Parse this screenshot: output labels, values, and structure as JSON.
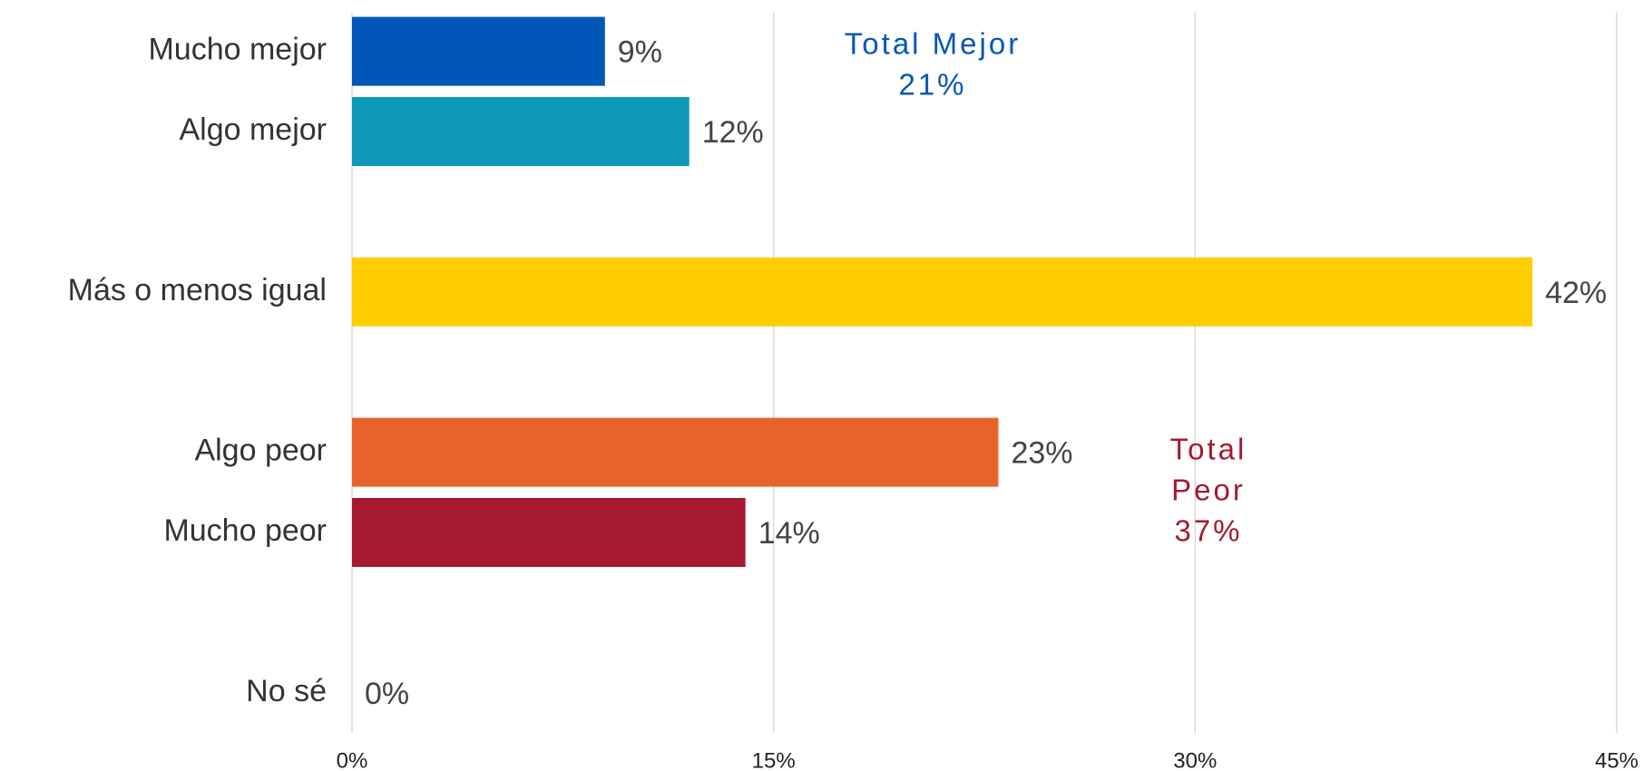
{
  "chart_data": {
    "type": "barh",
    "categories": [
      "Mucho mejor",
      "Algo mejor",
      null,
      "Más o menos igual",
      null,
      "Algo peor",
      "Mucho peor",
      null,
      "No sé"
    ],
    "values": [
      9,
      12,
      null,
      42,
      null,
      23,
      14,
      null,
      0
    ],
    "value_labels": [
      "9%",
      "12%",
      null,
      "42%",
      null,
      "23%",
      "14%",
      null,
      "0%"
    ],
    "colors": [
      "#0057b8",
      "#0e98b8",
      null,
      "#ffcd00",
      null,
      "#e8632b",
      "#a51931",
      null,
      "#a51931"
    ],
    "xlim": [
      0,
      45
    ],
    "xticks": [
      {
        "value": 0,
        "label": "0%"
      },
      {
        "value": 15,
        "label": "15%"
      },
      {
        "value": 30,
        "label": "30%"
      },
      {
        "value": 45,
        "label": "45%"
      }
    ],
    "grid": true,
    "annotations": [
      {
        "lines": [
          "Total Mejor",
          "21%"
        ],
        "color": "#0057b8"
      },
      {
        "lines": [
          "Total",
          "Peor",
          "37%"
        ],
        "color": "#a51931"
      }
    ]
  }
}
